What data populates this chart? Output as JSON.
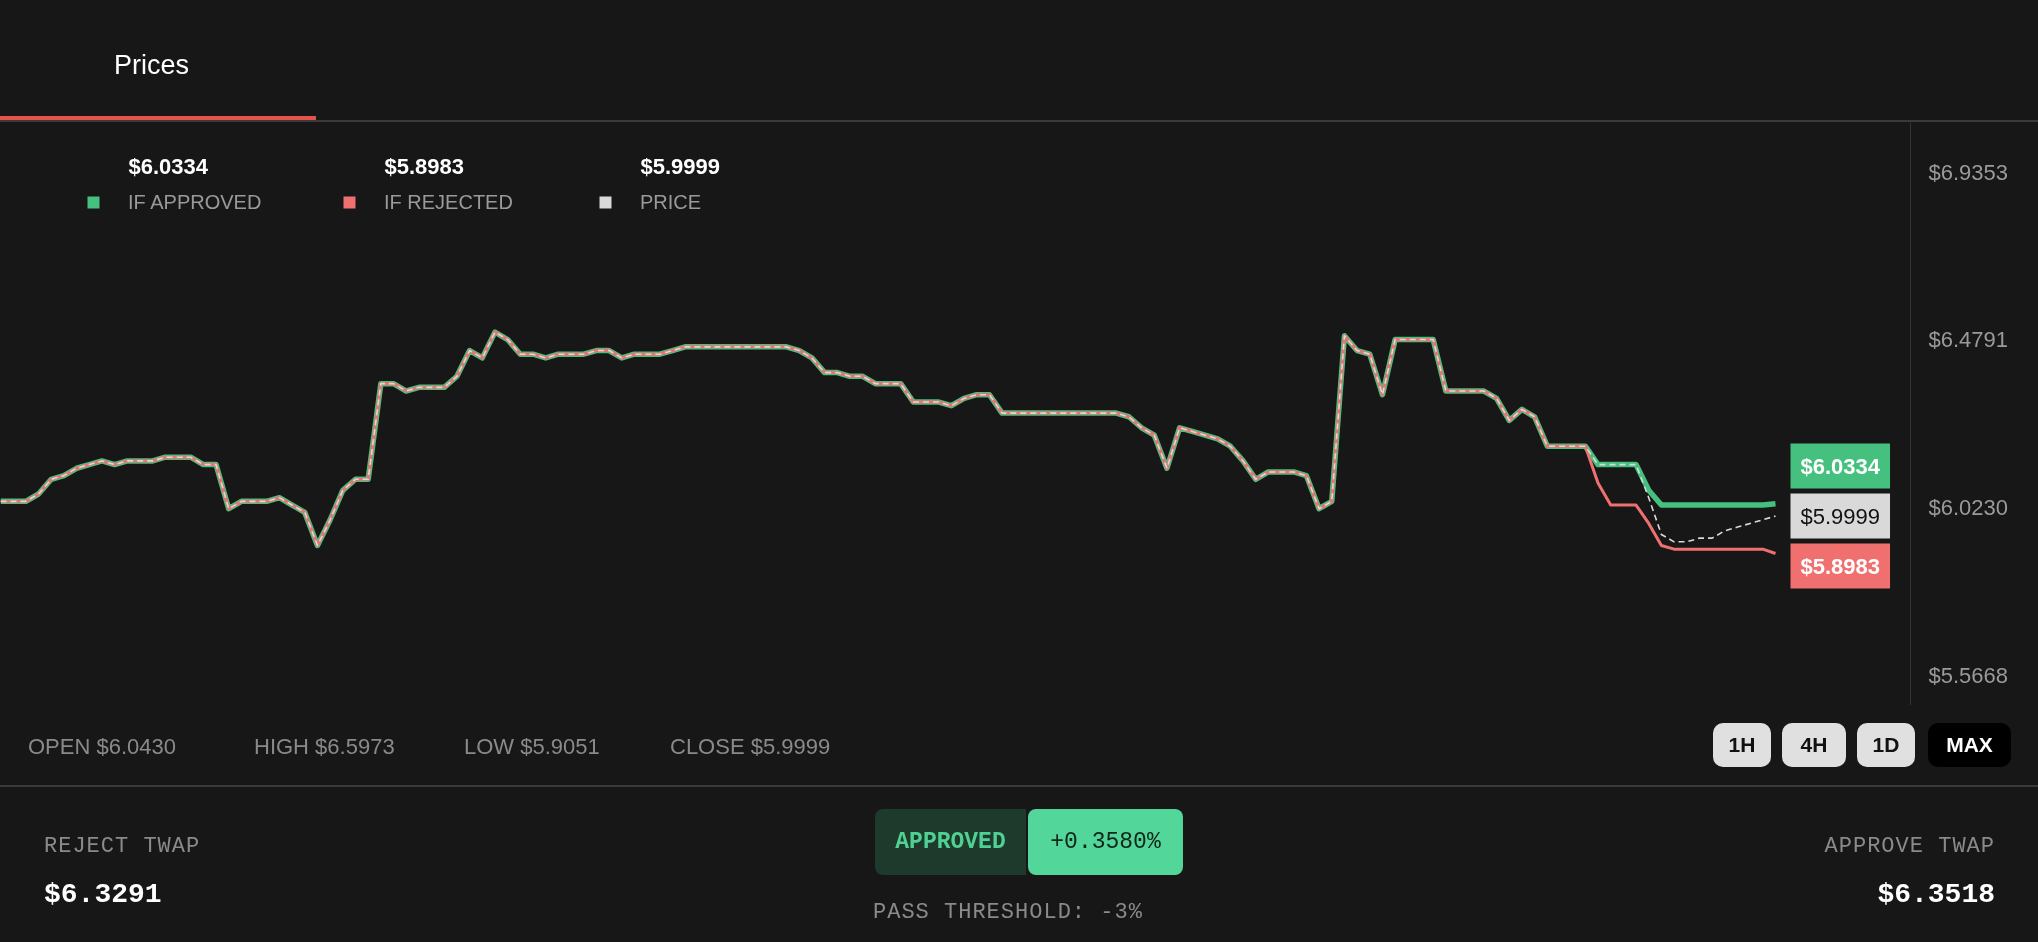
{
  "chart_data": {
    "type": "line",
    "title": "Prices",
    "categories": [
      null,
      null,
      null,
      null,
      null,
      null,
      null,
      null,
      null,
      null,
      null,
      null,
      null,
      null,
      null,
      null,
      null,
      null,
      null,
      null,
      null,
      null,
      null,
      null,
      null,
      null,
      null,
      null,
      null,
      null,
      null,
      null,
      null,
      null,
      null,
      null,
      null,
      null,
      null,
      null,
      null,
      null,
      null,
      null,
      null,
      null,
      null,
      null,
      null,
      null,
      null,
      null,
      null,
      null,
      null,
      null,
      null,
      null,
      null,
      null,
      null,
      null,
      null,
      null,
      null,
      null,
      null,
      null,
      null,
      null,
      null,
      null,
      null,
      null,
      null,
      null,
      null,
      null,
      null,
      null,
      null,
      null,
      null,
      null,
      null,
      null,
      null,
      null,
      null,
      null,
      null,
      null,
      null,
      null,
      null,
      null,
      null,
      null,
      null,
      null,
      null,
      null,
      null,
      null,
      null,
      null,
      null,
      null,
      null,
      null,
      null,
      null,
      null,
      null,
      null,
      null,
      null,
      null,
      null,
      null,
      null,
      null,
      null,
      null,
      null,
      null,
      null,
      null,
      null,
      null,
      null,
      null,
      null,
      null,
      null,
      null,
      null,
      null,
      null,
      null,
      null
    ],
    "series": [
      {
        "name": "IF APPROVED",
        "color": "#45c07e",
        "line_style": "solid",
        "values": [
          6.04,
          6.04,
          6.04,
          6.06,
          6.1,
          6.11,
          6.13,
          6.14,
          6.15,
          6.14,
          6.15,
          6.15,
          6.15,
          6.16,
          6.16,
          6.16,
          6.14,
          6.14,
          6.02,
          6.04,
          6.04,
          6.04,
          6.05,
          6.03,
          6.01,
          5.92,
          5.99,
          6.07,
          6.1,
          6.1,
          6.36,
          6.36,
          6.34,
          6.35,
          6.35,
          6.35,
          6.38,
          6.45,
          6.43,
          6.5,
          6.48,
          6.44,
          6.44,
          6.43,
          6.44,
          6.44,
          6.44,
          6.45,
          6.45,
          6.43,
          6.44,
          6.44,
          6.44,
          6.45,
          6.46,
          6.46,
          6.46,
          6.46,
          6.46,
          6.46,
          6.46,
          6.46,
          6.46,
          6.45,
          6.43,
          6.39,
          6.39,
          6.38,
          6.38,
          6.36,
          6.36,
          6.36,
          6.31,
          6.31,
          6.31,
          6.3,
          6.32,
          6.33,
          6.33,
          6.28,
          6.28,
          6.28,
          6.28,
          6.28,
          6.28,
          6.28,
          6.28,
          6.28,
          6.28,
          6.27,
          6.24,
          6.22,
          6.13,
          6.24,
          6.23,
          6.22,
          6.21,
          6.19,
          6.15,
          6.1,
          6.12,
          6.12,
          6.12,
          6.11,
          6.02,
          6.04,
          6.49,
          6.45,
          6.44,
          6.33,
          6.48,
          6.48,
          6.48,
          6.48,
          6.34,
          6.34,
          6.34,
          6.34,
          6.32,
          6.26,
          6.29,
          6.27,
          6.19,
          6.19,
          6.19,
          6.19,
          6.14,
          6.14,
          6.14,
          6.14,
          6.07,
          6.03,
          6.03,
          6.03,
          6.03,
          6.03,
          6.03,
          6.03,
          6.03,
          6.03,
          6.0334
        ],
        "value_labels": [
          null,
          null,
          null,
          null,
          null,
          null,
          null,
          null,
          null,
          null,
          null,
          null,
          null,
          null,
          null,
          null,
          null,
          null,
          null,
          null,
          null,
          null,
          null,
          null,
          null,
          null,
          null,
          null,
          null,
          null,
          null,
          null,
          null,
          null,
          null,
          null,
          null,
          null,
          null,
          null,
          null,
          null,
          null,
          null,
          null,
          null,
          null,
          null,
          null,
          null,
          null,
          null,
          null,
          null,
          null,
          null,
          null,
          null,
          null,
          null,
          null,
          null,
          null,
          null,
          null,
          null,
          null,
          null,
          null,
          null,
          null,
          null,
          null,
          null,
          null,
          null,
          null,
          null,
          null,
          null,
          null,
          null,
          null,
          null,
          null,
          null,
          null,
          null,
          null,
          null,
          null,
          null,
          null,
          null,
          null,
          null,
          null,
          null,
          null,
          null,
          null,
          null,
          null,
          null,
          null,
          null,
          null,
          null,
          null,
          null,
          null,
          null,
          null,
          null,
          null,
          null,
          null,
          null,
          null,
          null,
          null,
          null,
          null,
          null,
          null,
          null,
          null,
          null,
          null,
          null,
          null,
          null,
          null,
          null,
          null,
          null,
          null,
          null,
          null,
          null,
          "$6.0334"
        ]
      },
      {
        "name": "IF REJECTED",
        "color": "#f07070",
        "line_style": "solid",
        "values": [
          6.04,
          6.04,
          6.04,
          6.06,
          6.1,
          6.11,
          6.13,
          6.14,
          6.15,
          6.14,
          6.15,
          6.15,
          6.15,
          6.16,
          6.16,
          6.16,
          6.14,
          6.14,
          6.02,
          6.04,
          6.04,
          6.04,
          6.05,
          6.03,
          6.01,
          5.92,
          5.99,
          6.07,
          6.1,
          6.1,
          6.36,
          6.36,
          6.34,
          6.35,
          6.35,
          6.35,
          6.38,
          6.45,
          6.43,
          6.5,
          6.48,
          6.44,
          6.44,
          6.43,
          6.44,
          6.44,
          6.44,
          6.45,
          6.45,
          6.43,
          6.44,
          6.44,
          6.44,
          6.45,
          6.46,
          6.46,
          6.46,
          6.46,
          6.46,
          6.46,
          6.46,
          6.46,
          6.46,
          6.45,
          6.43,
          6.39,
          6.39,
          6.38,
          6.38,
          6.36,
          6.36,
          6.36,
          6.31,
          6.31,
          6.31,
          6.3,
          6.32,
          6.33,
          6.33,
          6.28,
          6.28,
          6.28,
          6.28,
          6.28,
          6.28,
          6.28,
          6.28,
          6.28,
          6.28,
          6.27,
          6.24,
          6.22,
          6.13,
          6.24,
          6.23,
          6.22,
          6.21,
          6.19,
          6.15,
          6.1,
          6.12,
          6.12,
          6.12,
          6.11,
          6.02,
          6.04,
          6.49,
          6.45,
          6.44,
          6.33,
          6.48,
          6.48,
          6.48,
          6.48,
          6.34,
          6.34,
          6.34,
          6.34,
          6.32,
          6.26,
          6.29,
          6.27,
          6.19,
          6.19,
          6.19,
          6.19,
          6.09,
          6.03,
          6.03,
          6.03,
          5.98,
          5.92,
          5.91,
          5.91,
          5.91,
          5.91,
          5.91,
          5.91,
          5.91,
          5.91,
          5.8983
        ],
        "value_labels": [
          null,
          null,
          null,
          null,
          null,
          null,
          null,
          null,
          null,
          null,
          null,
          null,
          null,
          null,
          null,
          null,
          null,
          null,
          null,
          null,
          null,
          null,
          null,
          null,
          null,
          null,
          null,
          null,
          null,
          null,
          null,
          null,
          null,
          null,
          null,
          null,
          null,
          null,
          null,
          null,
          null,
          null,
          null,
          null,
          null,
          null,
          null,
          null,
          null,
          null,
          null,
          null,
          null,
          null,
          null,
          null,
          null,
          null,
          null,
          null,
          null,
          null,
          null,
          null,
          null,
          null,
          null,
          null,
          null,
          null,
          null,
          null,
          null,
          null,
          null,
          null,
          null,
          null,
          null,
          null,
          null,
          null,
          null,
          null,
          null,
          null,
          null,
          null,
          null,
          null,
          null,
          null,
          null,
          null,
          null,
          null,
          null,
          null,
          null,
          null,
          null,
          null,
          null,
          null,
          null,
          null,
          null,
          null,
          null,
          null,
          null,
          null,
          null,
          null,
          null,
          null,
          null,
          null,
          null,
          null,
          null,
          null,
          null,
          null,
          null,
          null,
          null,
          null,
          null,
          null,
          null,
          null,
          null,
          null,
          null,
          null,
          null,
          null,
          null,
          null,
          "$5.8983"
        ]
      },
      {
        "name": "PRICE",
        "color": "#d9d9d9",
        "line_style": "dashed",
        "values": [
          6.04,
          6.04,
          6.04,
          6.06,
          6.1,
          6.11,
          6.13,
          6.14,
          6.15,
          6.14,
          6.15,
          6.15,
          6.15,
          6.16,
          6.16,
          6.16,
          6.14,
          6.14,
          6.02,
          6.04,
          6.04,
          6.04,
          6.05,
          6.03,
          6.01,
          5.92,
          5.99,
          6.07,
          6.1,
          6.1,
          6.36,
          6.36,
          6.34,
          6.35,
          6.35,
          6.35,
          6.38,
          6.45,
          6.43,
          6.5,
          6.48,
          6.44,
          6.44,
          6.43,
          6.44,
          6.44,
          6.44,
          6.45,
          6.45,
          6.43,
          6.44,
          6.44,
          6.44,
          6.45,
          6.46,
          6.46,
          6.46,
          6.46,
          6.46,
          6.46,
          6.46,
          6.46,
          6.46,
          6.45,
          6.43,
          6.39,
          6.39,
          6.38,
          6.38,
          6.36,
          6.36,
          6.36,
          6.31,
          6.31,
          6.31,
          6.3,
          6.32,
          6.33,
          6.33,
          6.28,
          6.28,
          6.28,
          6.28,
          6.28,
          6.28,
          6.28,
          6.28,
          6.28,
          6.28,
          6.27,
          6.24,
          6.22,
          6.13,
          6.24,
          6.23,
          6.22,
          6.21,
          6.19,
          6.15,
          6.1,
          6.12,
          6.12,
          6.12,
          6.11,
          6.02,
          6.04,
          6.49,
          6.45,
          6.44,
          6.33,
          6.48,
          6.48,
          6.48,
          6.48,
          6.34,
          6.34,
          6.34,
          6.34,
          6.32,
          6.26,
          6.29,
          6.27,
          6.19,
          6.19,
          6.19,
          6.19,
          6.14,
          6.14,
          6.14,
          6.14,
          6.05,
          5.95,
          5.93,
          5.93,
          5.94,
          5.94,
          5.96,
          5.97,
          5.98,
          5.99,
          5.9999
        ],
        "value_labels": [
          null,
          null,
          null,
          null,
          null,
          null,
          null,
          null,
          null,
          null,
          null,
          null,
          null,
          null,
          null,
          null,
          null,
          null,
          null,
          null,
          null,
          null,
          null,
          null,
          null,
          null,
          null,
          null,
          null,
          null,
          null,
          null,
          null,
          null,
          null,
          null,
          null,
          null,
          null,
          null,
          null,
          null,
          null,
          null,
          null,
          null,
          null,
          null,
          null,
          null,
          null,
          null,
          null,
          null,
          null,
          null,
          null,
          null,
          null,
          null,
          null,
          null,
          null,
          null,
          null,
          null,
          null,
          null,
          null,
          null,
          null,
          null,
          null,
          null,
          null,
          null,
          null,
          null,
          null,
          null,
          null,
          null,
          null,
          null,
          null,
          null,
          null,
          null,
          null,
          null,
          null,
          null,
          null,
          null,
          null,
          null,
          null,
          null,
          null,
          null,
          null,
          null,
          null,
          null,
          null,
          null,
          null,
          null,
          null,
          null,
          null,
          null,
          null,
          null,
          null,
          null,
          null,
          null,
          null,
          null,
          null,
          null,
          null,
          null,
          null,
          null,
          null,
          null,
          null,
          null,
          null,
          null,
          null,
          null,
          null,
          null,
          null,
          null,
          null,
          null,
          "$5.9999"
        ]
      }
    ],
    "ylim": [
      5.485,
      7.07
    ],
    "yticks": [
      {
        "value": 6.9353,
        "label": "$6.9353"
      },
      {
        "value": 6.4791,
        "label": "$6.4791"
      },
      {
        "value": 6.023,
        "label": "$6.0230"
      },
      {
        "value": 5.5668,
        "label": "$5.5668"
      }
    ],
    "tick_labels": "y",
    "legend": "top left",
    "annotations": [
      "OPEN $6.0430",
      "HIGH $6.5973",
      "LOW $5.9051",
      "CLOSE $5.9999",
      "1H",
      "4H",
      "1D",
      "MAX",
      "REJECT TWAP",
      "$6.3291",
      "APPROVED",
      "+0.3580%",
      "PASS THRESHOLD: -3%",
      "APPROVE TWAP",
      "$6.3518"
    ]
  }
}
